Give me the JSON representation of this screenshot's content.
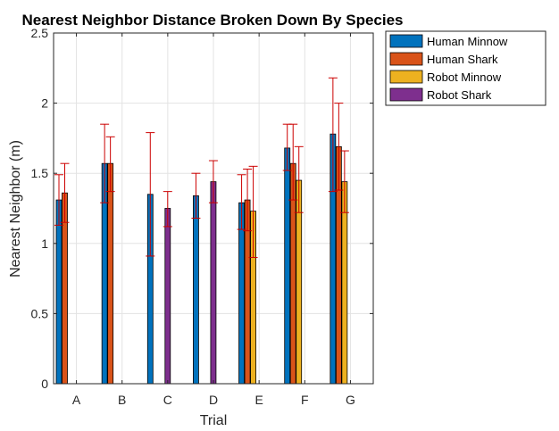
{
  "chart_data": {
    "type": "bar",
    "title": "Nearest Neighbor Distance Broken Down By Species",
    "xlabel": "Trial",
    "ylabel": "Nearest Neighbor (m)",
    "ylim": [
      0,
      2.5
    ],
    "yticks": [
      0,
      0.5,
      1,
      1.5,
      2,
      2.5
    ],
    "ytick_labels": [
      "0",
      "0.5",
      "1",
      "1.5",
      "2",
      "2.5"
    ],
    "grid": true,
    "legend_position": "outside-top-right",
    "categories": [
      "A",
      "B",
      "C",
      "D",
      "E",
      "F",
      "G"
    ],
    "series": [
      {
        "name": "Human Minnow",
        "color": "#0072bd",
        "values": [
          1.31,
          1.57,
          1.35,
          1.34,
          1.29,
          1.68,
          1.78
        ],
        "err_low": [
          1.13,
          1.29,
          0.91,
          1.18,
          1.1,
          1.52,
          1.37
        ],
        "err_high": [
          1.49,
          1.85,
          1.79,
          1.5,
          1.49,
          1.85,
          2.18
        ]
      },
      {
        "name": "Human Shark",
        "color": "#d95319",
        "values": [
          1.36,
          1.57,
          null,
          null,
          1.31,
          1.57,
          1.69
        ],
        "err_low": [
          1.15,
          1.37,
          null,
          null,
          1.09,
          1.31,
          1.38
        ],
        "err_high": [
          1.57,
          1.76,
          null,
          null,
          1.53,
          1.85,
          2.0
        ]
      },
      {
        "name": "Robot Minnow",
        "color": "#edb120",
        "values": [
          null,
          null,
          null,
          null,
          1.23,
          1.45,
          1.44
        ],
        "err_low": [
          null,
          null,
          null,
          null,
          0.9,
          1.22,
          1.22
        ],
        "err_high": [
          null,
          null,
          null,
          null,
          1.55,
          1.69,
          1.66
        ]
      },
      {
        "name": "Robot Shark",
        "color": "#7e2f8e",
        "values": [
          null,
          null,
          1.25,
          1.44,
          null,
          null,
          null
        ],
        "err_low": [
          null,
          null,
          1.12,
          1.29,
          null,
          null,
          null
        ],
        "err_high": [
          null,
          null,
          1.37,
          1.59,
          null,
          null,
          null
        ]
      }
    ],
    "error_bar_color": "#cc0000",
    "grid_color": "#e3e3e3",
    "axis_color": "#262626"
  }
}
